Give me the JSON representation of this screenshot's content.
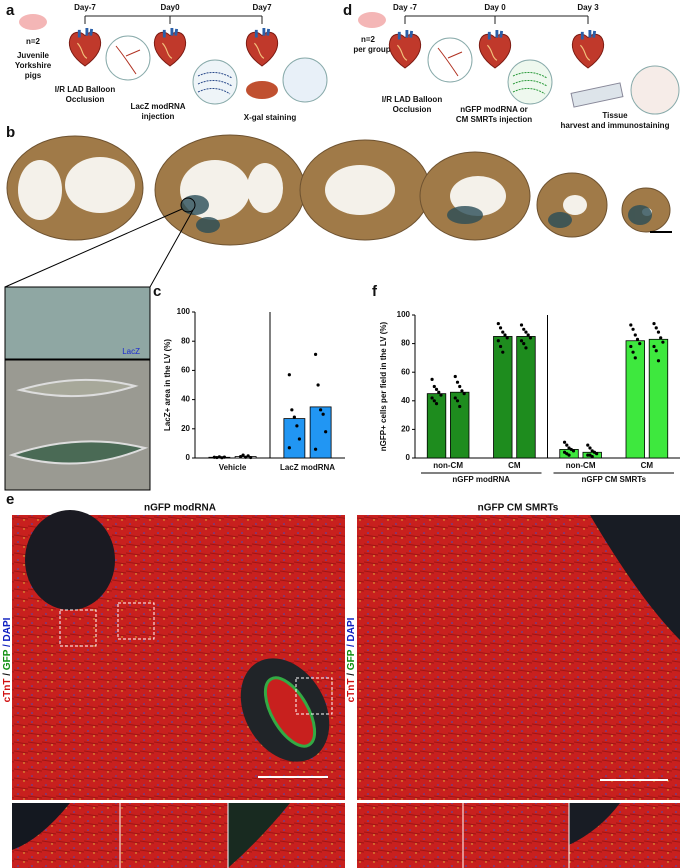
{
  "panel_labels": [
    "a",
    "b",
    "c",
    "d",
    "e",
    "f"
  ],
  "panel_a": {
    "cohort": [
      "n=2",
      "Juvenile",
      "Yorkshire",
      "pigs"
    ],
    "days": [
      "Day-7",
      "Day0",
      "Day7"
    ],
    "steps": [
      "I/R LAD Balloon",
      "Occlusion",
      "LacZ modRNA",
      "injection",
      "X-gal staining"
    ]
  },
  "panel_d": {
    "cohort": [
      "n=2",
      "per group"
    ],
    "days": [
      "Day -7",
      "Day 0",
      "Day 3"
    ],
    "steps": [
      "I/R LAD Balloon",
      "Occlusion",
      "nGFP modRNA or",
      "CM SMRTs injection",
      "Tissue",
      "harvest and immunostaining"
    ]
  },
  "panel_b": {
    "inset_label": "LacZ"
  },
  "panel_e": {
    "titles": [
      "nGFP modRNA",
      "nGFP CM SMRTs"
    ],
    "stain": [
      "cTnT",
      "/",
      "GFP",
      "/ DAPI"
    ]
  },
  "chart_data": [
    {
      "type": "bar",
      "ylabel": "LacZ+ area in the LV (%)",
      "ylim": [
        0,
        100
      ],
      "yticks": [
        0,
        20,
        40,
        60,
        80,
        100
      ],
      "divider": true,
      "groups": [
        {
          "label": "Vehicle",
          "color": "#ffffff",
          "bars": [
            {
              "value": 0.5,
              "points": [
                0.5,
                0.3,
                0.8,
                0.2,
                0.6
              ]
            },
            {
              "value": 1,
              "points": [
                1,
                2,
                0.5,
                1.5,
                0.3
              ]
            }
          ]
        },
        {
          "label": "LacZ modRNA",
          "color": "#2196f3",
          "bars": [
            {
              "value": 27,
              "points": [
                57,
                33,
                28,
                22,
                13,
                7
              ]
            },
            {
              "value": 35,
              "points": [
                71,
                50,
                33,
                30,
                18,
                6
              ]
            }
          ]
        }
      ]
    },
    {
      "type": "bar",
      "ylabel": "nGFP+ cells per field in the LV (%)",
      "ylim": [
        0,
        100
      ],
      "yticks": [
        0,
        20,
        40,
        60,
        80,
        100
      ],
      "divider": true,
      "groups": [
        {
          "label": "nGFP modRNA",
          "color": "#1e8c1e",
          "subgroups": [
            {
              "label": "non-CM",
              "bars": [
                {
                  "value": 45,
                  "points": [
                    55,
                    50,
                    48,
                    46,
                    44,
                    42,
                    40,
                    38
                  ]
                },
                {
                  "value": 46,
                  "points": [
                    57,
                    53,
                    50,
                    47,
                    45,
                    42,
                    40,
                    36
                  ]
                }
              ]
            },
            {
              "label": "CM",
              "bars": [
                {
                  "value": 85,
                  "points": [
                    94,
                    91,
                    88,
                    86,
                    84,
                    82,
                    78,
                    74
                  ]
                },
                {
                  "value": 85,
                  "points": [
                    93,
                    90,
                    88,
                    86,
                    84,
                    82,
                    80,
                    77
                  ]
                }
              ]
            }
          ]
        },
        {
          "label": "nGFP CM SMRTs",
          "color": "#3ee83e",
          "subgroups": [
            {
              "label": "non-CM",
              "bars": [
                {
                  "value": 6,
                  "points": [
                    11,
                    9,
                    7,
                    6,
                    5,
                    4,
                    3,
                    2
                  ]
                },
                {
                  "value": 4,
                  "points": [
                    9,
                    7,
                    5,
                    4,
                    3,
                    2,
                    2,
                    1
                  ]
                }
              ]
            },
            {
              "label": "CM",
              "bars": [
                {
                  "value": 82,
                  "points": [
                    93,
                    90,
                    86,
                    83,
                    80,
                    78,
                    74,
                    70
                  ]
                },
                {
                  "value": 83,
                  "points": [
                    94,
                    91,
                    88,
                    84,
                    81,
                    78,
                    75,
                    68
                  ]
                }
              ]
            }
          ]
        }
      ]
    }
  ]
}
